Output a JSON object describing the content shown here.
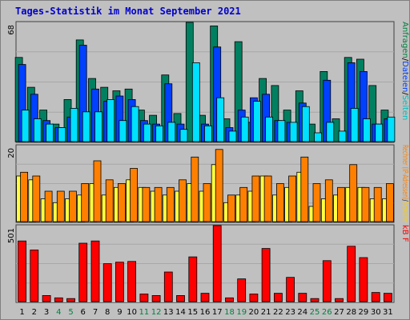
{
  "title": "Tages-Statistik im Monat September 2021",
  "chart_data": {
    "type": "bar",
    "x": [
      "1",
      "2",
      "3",
      "4",
      "5",
      "6",
      "7",
      "8",
      "9",
      "10",
      "11",
      "12",
      "13",
      "14",
      "15",
      "16",
      "17",
      "18",
      "19",
      "20",
      "21",
      "22",
      "23",
      "24",
      "25",
      "26",
      "27",
      "28",
      "29",
      "30",
      "31"
    ],
    "weekend_days": [
      "4",
      "5",
      "11",
      "12",
      "18",
      "19",
      "25",
      "26"
    ],
    "panels": [
      {
        "id": "top",
        "ymax": 68,
        "ytick_label": "68",
        "right_label": [
          {
            "text": "Anfragen",
            "color": "#008040"
          },
          {
            "text": "/",
            "color": "#000000"
          },
          {
            "text": "Dateien",
            "color": "#0040ff"
          },
          {
            "text": "/",
            "color": "#000000"
          },
          {
            "text": "Seiten",
            "color": "#00c0c0"
          }
        ],
        "series": [
          {
            "key": "anfragen",
            "color": "#008060",
            "values": [
              48,
              31,
              18,
              10,
              24,
              58,
              36,
              31,
              29,
              30,
              18,
              15,
              38,
              16,
              68,
              15,
              66,
              13,
              57,
              11,
              36,
              32,
              18,
              29,
              10,
              40,
              13,
              48,
              47,
              32,
              18
            ]
          },
          {
            "key": "dateien",
            "color": "#0040ff",
            "values": [
              44,
              27,
              12,
              8,
              14,
              55,
              30,
              23,
              26,
              24,
              12,
              10,
              33,
              10,
              0,
              10,
              54,
              8,
              18,
              25,
              27,
              12,
              11,
              22,
              0,
              35,
              0,
              45,
              40,
              10,
              13
            ]
          },
          {
            "key": "seiten",
            "color": "#00e0ff",
            "values": [
              18,
              13,
              10,
              8,
              19,
              17,
              17,
              24,
              12,
              20,
              10,
              9,
              11,
              7,
              45,
              9,
              25,
              6,
              14,
              23,
              14,
              12,
              11,
              20,
              5,
              11,
              6,
              19,
              13,
              10,
              14
            ]
          }
        ]
      },
      {
        "id": "middle",
        "ymax": 20,
        "ytick_label": "20",
        "right_label": [
          {
            "text": "Rechner (IP-Adressen)",
            "color": "#ff8000"
          },
          {
            "text": "/",
            "color": "#000000"
          },
          {
            "text": "Besuche",
            "color": "#ffcc00"
          }
        ],
        "series": [
          {
            "key": "besuche",
            "color": "#ffff40",
            "values": [
              12,
              11,
              6,
              5,
              6,
              7,
              10,
              7,
              9,
              11,
              9,
              8,
              7,
              8,
              10,
              8,
              15,
              5,
              7,
              8,
              12,
              7,
              9,
              13,
              4,
              6,
              7,
              9,
              9,
              6,
              6
            ]
          },
          {
            "key": "rechner",
            "color": "#ff8000",
            "values": [
              13,
              12,
              8,
              8,
              8,
              10,
              16,
              11,
              10,
              14,
              9,
              9,
              9,
              11,
              17,
              10,
              19,
              7,
              9,
              12,
              12,
              10,
              12,
              17,
              10,
              11,
              9,
              15,
              9,
              9,
              10
            ]
          }
        ]
      },
      {
        "id": "bottom",
        "ymax": 501,
        "ytick_label": "501",
        "right_label": [
          {
            "text": "kB F",
            "color": "#ff0000"
          }
        ],
        "series": [
          {
            "key": "kbf",
            "color": "#ff0000",
            "values": [
              400,
              340,
              40,
              25,
              20,
              385,
              400,
              250,
              260,
              265,
              50,
              40,
              195,
              40,
              295,
              55,
              501,
              25,
              150,
              50,
              350,
              55,
              160,
              55,
              20,
              270,
              20,
              365,
              290,
              60,
              55
            ]
          }
        ]
      }
    ]
  }
}
